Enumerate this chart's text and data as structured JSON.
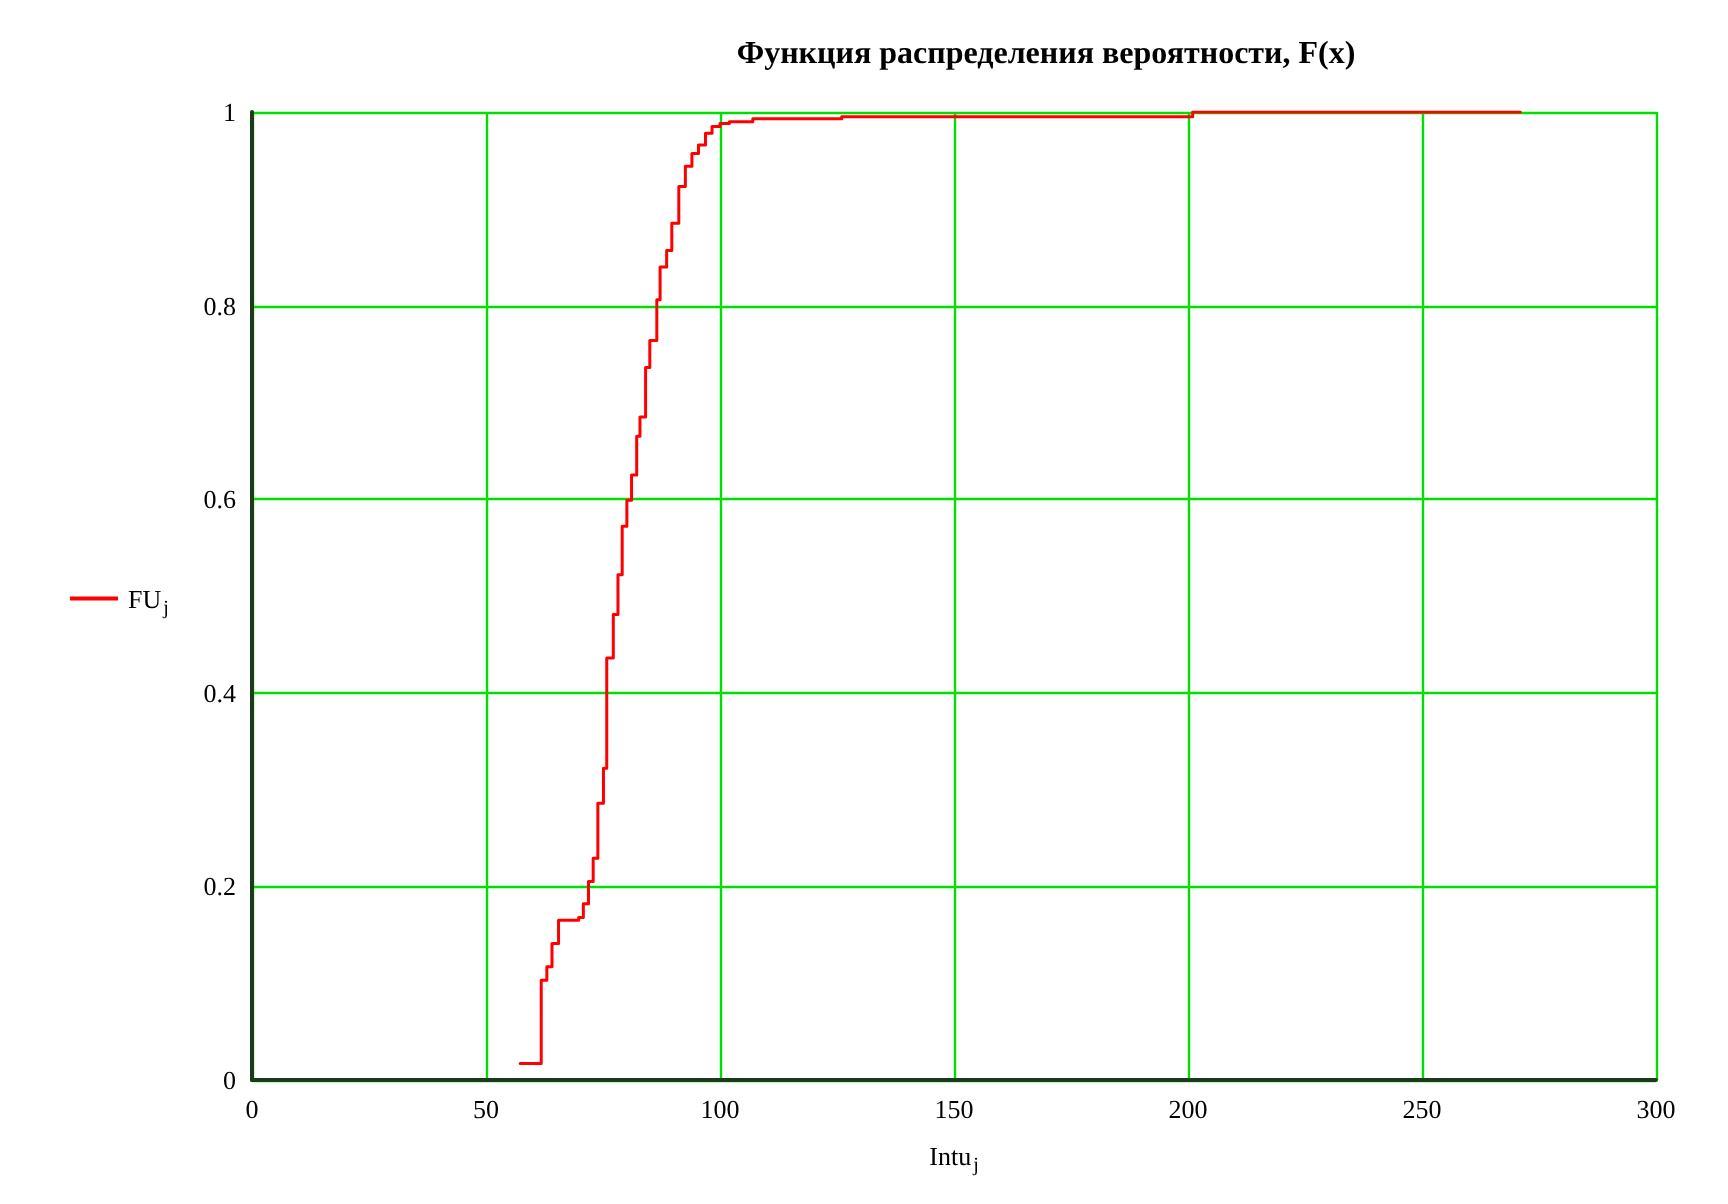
{
  "chart_data": {
    "type": "step",
    "title": "Функция распределения вероятности, F(x)",
    "xlabel": "Intu$_{j}$",
    "series": [
      {
        "name": "FU$_{j}$",
        "color": "#ff0000",
        "x": [
          57.3,
          61.8,
          63,
          64.1,
          65.5,
          69.8,
          70.8,
          71.9,
          72.9,
          73.9,
          75.1,
          75.8,
          77.2,
          78.2,
          79.1,
          80.1,
          81.1,
          82.2,
          82.9,
          84.1,
          85,
          86.5,
          87.2,
          88.6,
          89.7,
          91.2,
          92.6,
          94,
          95.4,
          96.9,
          98.3,
          100,
          102,
          107,
          126,
          201,
          271
        ],
        "values": [
          0.017,
          0.103,
          0.117,
          0.141,
          0.165,
          0.168,
          0.182,
          0.205,
          0.229,
          0.286,
          0.322,
          0.436,
          0.481,
          0.522,
          0.572,
          0.599,
          0.625,
          0.665,
          0.685,
          0.736,
          0.764,
          0.806,
          0.84,
          0.857,
          0.885,
          0.923,
          0.944,
          0.957,
          0.966,
          0.978,
          0.985,
          0.988,
          0.99,
          0.993,
          0.995,
          1,
          1
        ]
      }
    ],
    "xlim": [
      0,
      300
    ],
    "xticks": [
      0,
      50,
      100,
      150,
      200,
      250,
      300
    ],
    "ylim": [
      0,
      1
    ],
    "yticks": [
      0,
      0.2,
      0.4,
      0.6,
      0.8,
      1
    ],
    "grid": true,
    "legend": "left",
    "marker": "none",
    "line_style": "solid"
  }
}
